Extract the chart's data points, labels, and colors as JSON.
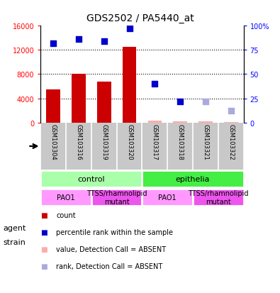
{
  "title": "GDS2502 / PA5440_at",
  "samples": [
    "GSM103304",
    "GSM103316",
    "GSM103319",
    "GSM103320",
    "GSM103317",
    "GSM103318",
    "GSM103321",
    "GSM103322"
  ],
  "counts": [
    5500,
    8000,
    6800,
    12500,
    300,
    250,
    150,
    80
  ],
  "percentile_ranks": [
    82,
    86,
    84,
    97,
    40,
    22,
    null,
    null
  ],
  "percentile_ranks_absent": [
    null,
    null,
    null,
    null,
    null,
    null,
    22,
    12
  ],
  "bar_is_absent": [
    false,
    false,
    false,
    false,
    true,
    true,
    true,
    true
  ],
  "rank_is_absent": [
    false,
    false,
    false,
    false,
    false,
    false,
    true,
    true
  ],
  "ylim_left": [
    0,
    16000
  ],
  "ylim_right": [
    0,
    100
  ],
  "yticks_left": [
    0,
    4000,
    8000,
    12000,
    16000
  ],
  "ytick_labels_left": [
    "0",
    "4000",
    "8000",
    "12000",
    "16000"
  ],
  "yticks_right": [
    0,
    25,
    50,
    75,
    100
  ],
  "ytick_labels_right": [
    "0",
    "25",
    "50",
    "75",
    "100%"
  ],
  "agent_groups": [
    {
      "label": "control",
      "start": 0,
      "end": 4,
      "color": "#aaffaa"
    },
    {
      "label": "epithelia",
      "start": 4,
      "end": 8,
      "color": "#44ee44"
    }
  ],
  "strain_groups": [
    {
      "label": "PAO1",
      "start": 0,
      "end": 2,
      "color": "#ff99ff"
    },
    {
      "label": "TTSS/rhamnolipid\nmutant",
      "start": 2,
      "end": 4,
      "color": "#ee55ee"
    },
    {
      "label": "PAO1",
      "start": 4,
      "end": 6,
      "color": "#ff99ff"
    },
    {
      "label": "TTSS/rhamnolipid\nmutant",
      "start": 6,
      "end": 8,
      "color": "#ee55ee"
    }
  ],
  "bar_color": "#cc0000",
  "bar_absent_color": "#ffaaaa",
  "rank_color": "#0000cc",
  "rank_absent_color": "#aaaadd",
  "label_bg_color": "#c8c8c8",
  "plot_bg": "#ffffff"
}
